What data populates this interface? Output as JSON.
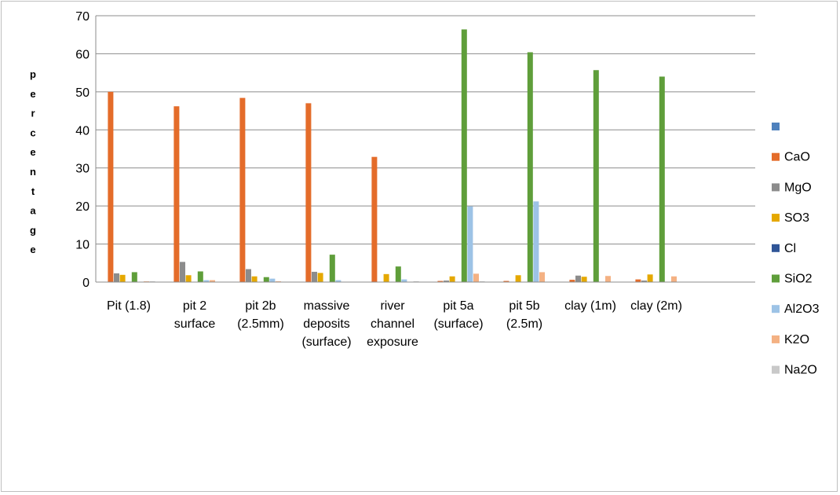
{
  "chart_data": {
    "type": "bar",
    "title": "",
    "xlabel": "",
    "ylabel": "percentage",
    "ylim": [
      0,
      70
    ],
    "y_ticks": [
      0,
      10,
      20,
      30,
      40,
      50,
      60,
      70
    ],
    "grid": true,
    "legend_position": "right",
    "categories": [
      [
        "Pit (1.8)"
      ],
      [
        "pit 2",
        "surface"
      ],
      [
        "pit 2b",
        "(2.5mm)"
      ],
      [
        "massive",
        "deposits",
        "(surface)"
      ],
      [
        "river",
        "channel",
        "exposure"
      ],
      [
        "pit 5a",
        "(surface)"
      ],
      [
        "pit 5b",
        "(2.5m)"
      ],
      [
        "clay (1m)"
      ],
      [
        "clay (2m)"
      ],
      [
        ""
      ]
    ],
    "series": [
      {
        "name": "",
        "color": "#4f81bd",
        "values": [
          0,
          0,
          0,
          0,
          0,
          0,
          0,
          0,
          0,
          0
        ]
      },
      {
        "name": "CaO",
        "color": "#e46c2a",
        "values": [
          50,
          46.2,
          48.4,
          47,
          32.9,
          0.3,
          0.3,
          0.6,
          0.7,
          0
        ]
      },
      {
        "name": "MgO",
        "color": "#8c8c8c",
        "values": [
          2.3,
          5.3,
          3.4,
          2.7,
          0,
          0.4,
          0,
          1.7,
          0.4,
          0
        ]
      },
      {
        "name": "SO3",
        "color": "#e5a800",
        "values": [
          1.9,
          1.8,
          1.5,
          2.4,
          2.1,
          1.5,
          1.8,
          1.4,
          2.0,
          0
        ]
      },
      {
        "name": "Cl",
        "color": "#2f5597",
        "values": [
          0,
          0,
          0,
          0,
          0,
          0,
          0,
          0,
          0,
          0
        ]
      },
      {
        "name": "SiO2",
        "color": "#5f9e3a",
        "values": [
          2.6,
          2.8,
          1.3,
          7.2,
          4.1,
          66.4,
          60.4,
          55.7,
          54,
          0
        ]
      },
      {
        "name": "Al2O3",
        "color": "#9dc3e6",
        "values": [
          0,
          0.5,
          0.9,
          0.5,
          0.7,
          19.9,
          21.2,
          0,
          0,
          0
        ]
      },
      {
        "name": "K2O",
        "color": "#f4b183",
        "values": [
          0.2,
          0.5,
          0.2,
          0,
          0,
          2.2,
          2.6,
          1.6,
          1.5,
          0
        ]
      },
      {
        "name": "Na2O",
        "color": "#c9c9c9",
        "values": [
          0.2,
          0,
          0.1,
          0,
          0.2,
          0.2,
          0,
          0,
          0,
          0
        ]
      }
    ]
  }
}
